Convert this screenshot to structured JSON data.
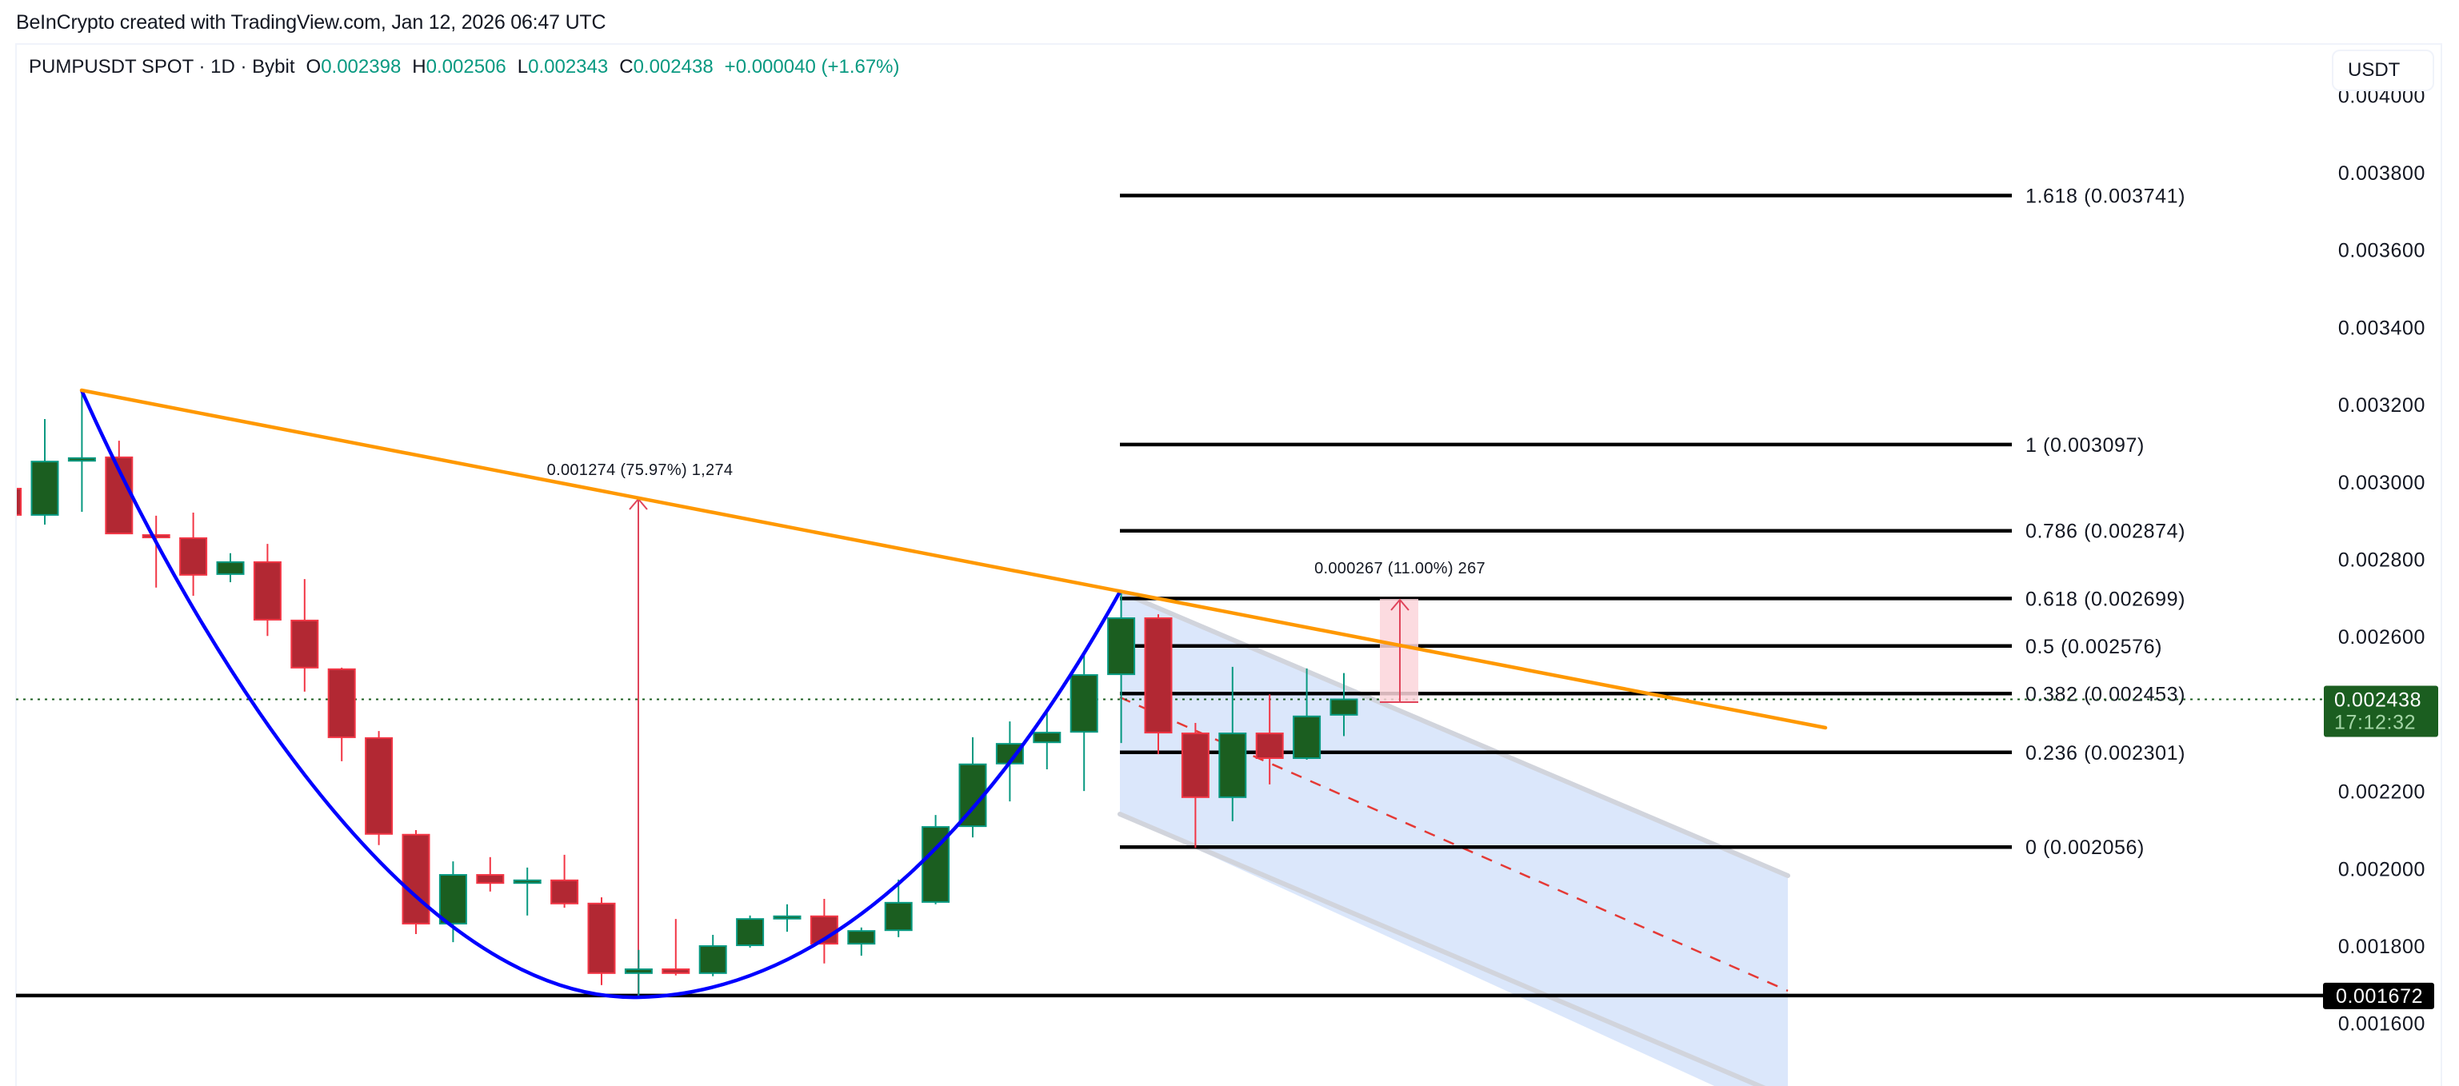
{
  "header": {
    "credit": "BeInCrypto created with TradingView.com, Jan 12, 2026 06:47 UTC"
  },
  "legend": {
    "symbol": "PUMPUSDT SPOT · 1D · Bybit",
    "open_label": "O",
    "open": "0.002398",
    "high_label": "H",
    "high": "0.002506",
    "low_label": "L",
    "low": "0.002343",
    "close_label": "C",
    "close": "0.002438",
    "change": "+0.000040 (+1.67%)"
  },
  "currency_button": "USDT",
  "colors": {
    "bull_body": "#1b5e20",
    "bull_border": "#089981",
    "bear_body": "#b22833",
    "bear_border": "#f23645",
    "trendline": "#ff9800",
    "cup_curve": "#0000ff",
    "channel_fill": "#dbe7fb",
    "channel_edge": "#d1d4dc",
    "channel_mid": "#e53935",
    "fib_line": "#000000",
    "support_line": "#000000",
    "measure": "#e0455b",
    "measure_fill": "#fbd5db",
    "price_tag": "#1b5e20",
    "price_line": "#1b5e20"
  },
  "current_price_tag": {
    "price": "0.002438",
    "countdown": "17:12:32"
  },
  "support_tag": {
    "price": "0.001672"
  },
  "chart_data": {
    "type": "candlestick",
    "title": "PUMPUSDT SPOT · 1D · Bybit",
    "xlabel": "",
    "ylabel": "USDT",
    "ylim": [
      0.00155,
      0.00405
    ],
    "grid": false,
    "y_ticks": [
      "0.004000",
      "0.003800",
      "0.003600",
      "0.003400",
      "0.003200",
      "0.003000",
      "0.002800",
      "0.002600",
      "0.002200",
      "0.002000",
      "0.001800",
      "0.001600"
    ],
    "candles": [
      {
        "o": 0.002983,
        "h": 0.002983,
        "l": 0.002915,
        "c": 0.002915
      },
      {
        "o": 0.002915,
        "h": 0.003163,
        "l": 0.00289,
        "c": 0.003053
      },
      {
        "o": 0.003055,
        "h": 0.003235,
        "l": 0.002923,
        "c": 0.003062
      },
      {
        "o": 0.003064,
        "h": 0.003107,
        "l": 0.002867,
        "c": 0.002867
      },
      {
        "o": 0.002863,
        "h": 0.002913,
        "l": 0.002727,
        "c": 0.002857
      },
      {
        "o": 0.002855,
        "h": 0.002921,
        "l": 0.002706,
        "c": 0.00276
      },
      {
        "o": 0.002762,
        "h": 0.002816,
        "l": 0.002741,
        "c": 0.002793
      },
      {
        "o": 0.002793,
        "h": 0.00284,
        "l": 0.002602,
        "c": 0.002644
      },
      {
        "o": 0.002642,
        "h": 0.002749,
        "l": 0.002458,
        "c": 0.00252
      },
      {
        "o": 0.002516,
        "h": 0.00252,
        "l": 0.002278,
        "c": 0.00234
      },
      {
        "o": 0.002338,
        "h": 0.002356,
        "l": 0.002061,
        "c": 0.00209
      },
      {
        "o": 0.002088,
        "h": 0.0021,
        "l": 0.001831,
        "c": 0.001858
      },
      {
        "o": 0.001858,
        "h": 0.002019,
        "l": 0.00181,
        "c": 0.001984
      },
      {
        "o": 0.001984,
        "h": 0.00203,
        "l": 0.001941,
        "c": 0.001963
      },
      {
        "o": 0.001963,
        "h": 0.002003,
        "l": 0.001879,
        "c": 0.00197
      },
      {
        "o": 0.00197,
        "h": 0.002036,
        "l": 0.001899,
        "c": 0.00191
      },
      {
        "o": 0.00191,
        "h": 0.001926,
        "l": 0.001699,
        "c": 0.00173
      },
      {
        "o": 0.00173,
        "h": 0.00179,
        "l": 0.00167,
        "c": 0.00174
      },
      {
        "o": 0.00174,
        "h": 0.00187,
        "l": 0.001724,
        "c": 0.00173
      },
      {
        "o": 0.00173,
        "h": 0.001829,
        "l": 0.001722,
        "c": 0.0018
      },
      {
        "o": 0.001802,
        "h": 0.001879,
        "l": 0.001796,
        "c": 0.00187
      },
      {
        "o": 0.001872,
        "h": 0.001908,
        "l": 0.001837,
        "c": 0.001877
      },
      {
        "o": 0.001877,
        "h": 0.001922,
        "l": 0.001755,
        "c": 0.001806
      },
      {
        "o": 0.001806,
        "h": 0.001848,
        "l": 0.001775,
        "c": 0.001839
      },
      {
        "o": 0.001841,
        "h": 0.001972,
        "l": 0.001823,
        "c": 0.001912
      },
      {
        "o": 0.001914,
        "h": 0.002139,
        "l": 0.001908,
        "c": 0.002108
      },
      {
        "o": 0.00211,
        "h": 0.00234,
        "l": 0.002081,
        "c": 0.00227
      },
      {
        "o": 0.002272,
        "h": 0.002381,
        "l": 0.002174,
        "c": 0.002323
      },
      {
        "o": 0.002327,
        "h": 0.002406,
        "l": 0.002257,
        "c": 0.002352
      },
      {
        "o": 0.002354,
        "h": 0.002561,
        "l": 0.002201,
        "c": 0.002501
      },
      {
        "o": 0.002503,
        "h": 0.002718,
        "l": 0.002325,
        "c": 0.002648
      },
      {
        "o": 0.002648,
        "h": 0.002658,
        "l": 0.002296,
        "c": 0.002352
      },
      {
        "o": 0.00235,
        "h": 0.002377,
        "l": 0.002054,
        "c": 0.002185
      },
      {
        "o": 0.002185,
        "h": 0.002522,
        "l": 0.002123,
        "c": 0.00235
      },
      {
        "o": 0.00235,
        "h": 0.002451,
        "l": 0.002218,
        "c": 0.002286
      },
      {
        "o": 0.002286,
        "h": 0.002518,
        "l": 0.002282,
        "c": 0.002394
      },
      {
        "o": 0.002398,
        "h": 0.002506,
        "l": 0.002343,
        "c": 0.002438
      }
    ],
    "fib_levels": [
      {
        "ratio": "1.618",
        "price": 0.003741,
        "label": "1.618 (0.003741)"
      },
      {
        "ratio": "1",
        "price": 0.003097,
        "label": "1 (0.003097)"
      },
      {
        "ratio": "0.786",
        "price": 0.002874,
        "label": "0.786 (0.002874)"
      },
      {
        "ratio": "0.618",
        "price": 0.002699,
        "label": "0.618 (0.002699)"
      },
      {
        "ratio": "0.5",
        "price": 0.002576,
        "label": "0.5 (0.002576)"
      },
      {
        "ratio": "0.382",
        "price": 0.002453,
        "label": "0.382 (0.002453)"
      },
      {
        "ratio": "0.236",
        "price": 0.002301,
        "label": "0.236 (0.002301)"
      },
      {
        "ratio": "0",
        "price": 0.002056,
        "label": "0 (0.002056)"
      }
    ],
    "support_level": 0.001672,
    "current_price": 0.002438,
    "annotations": [
      {
        "type": "measure",
        "label": "0.001274 (75.97%) 1,274",
        "from_price": 0.001672,
        "to_price": 0.002946
      },
      {
        "type": "measure",
        "label": "0.000267 (11.00%) 267",
        "from_price": 0.002432,
        "to_price": 0.002699
      }
    ],
    "drawings": [
      {
        "type": "descending trendline",
        "color": "orange"
      },
      {
        "type": "cup curve",
        "color": "blue"
      },
      {
        "type": "descending channel",
        "color": "light blue"
      }
    ]
  }
}
